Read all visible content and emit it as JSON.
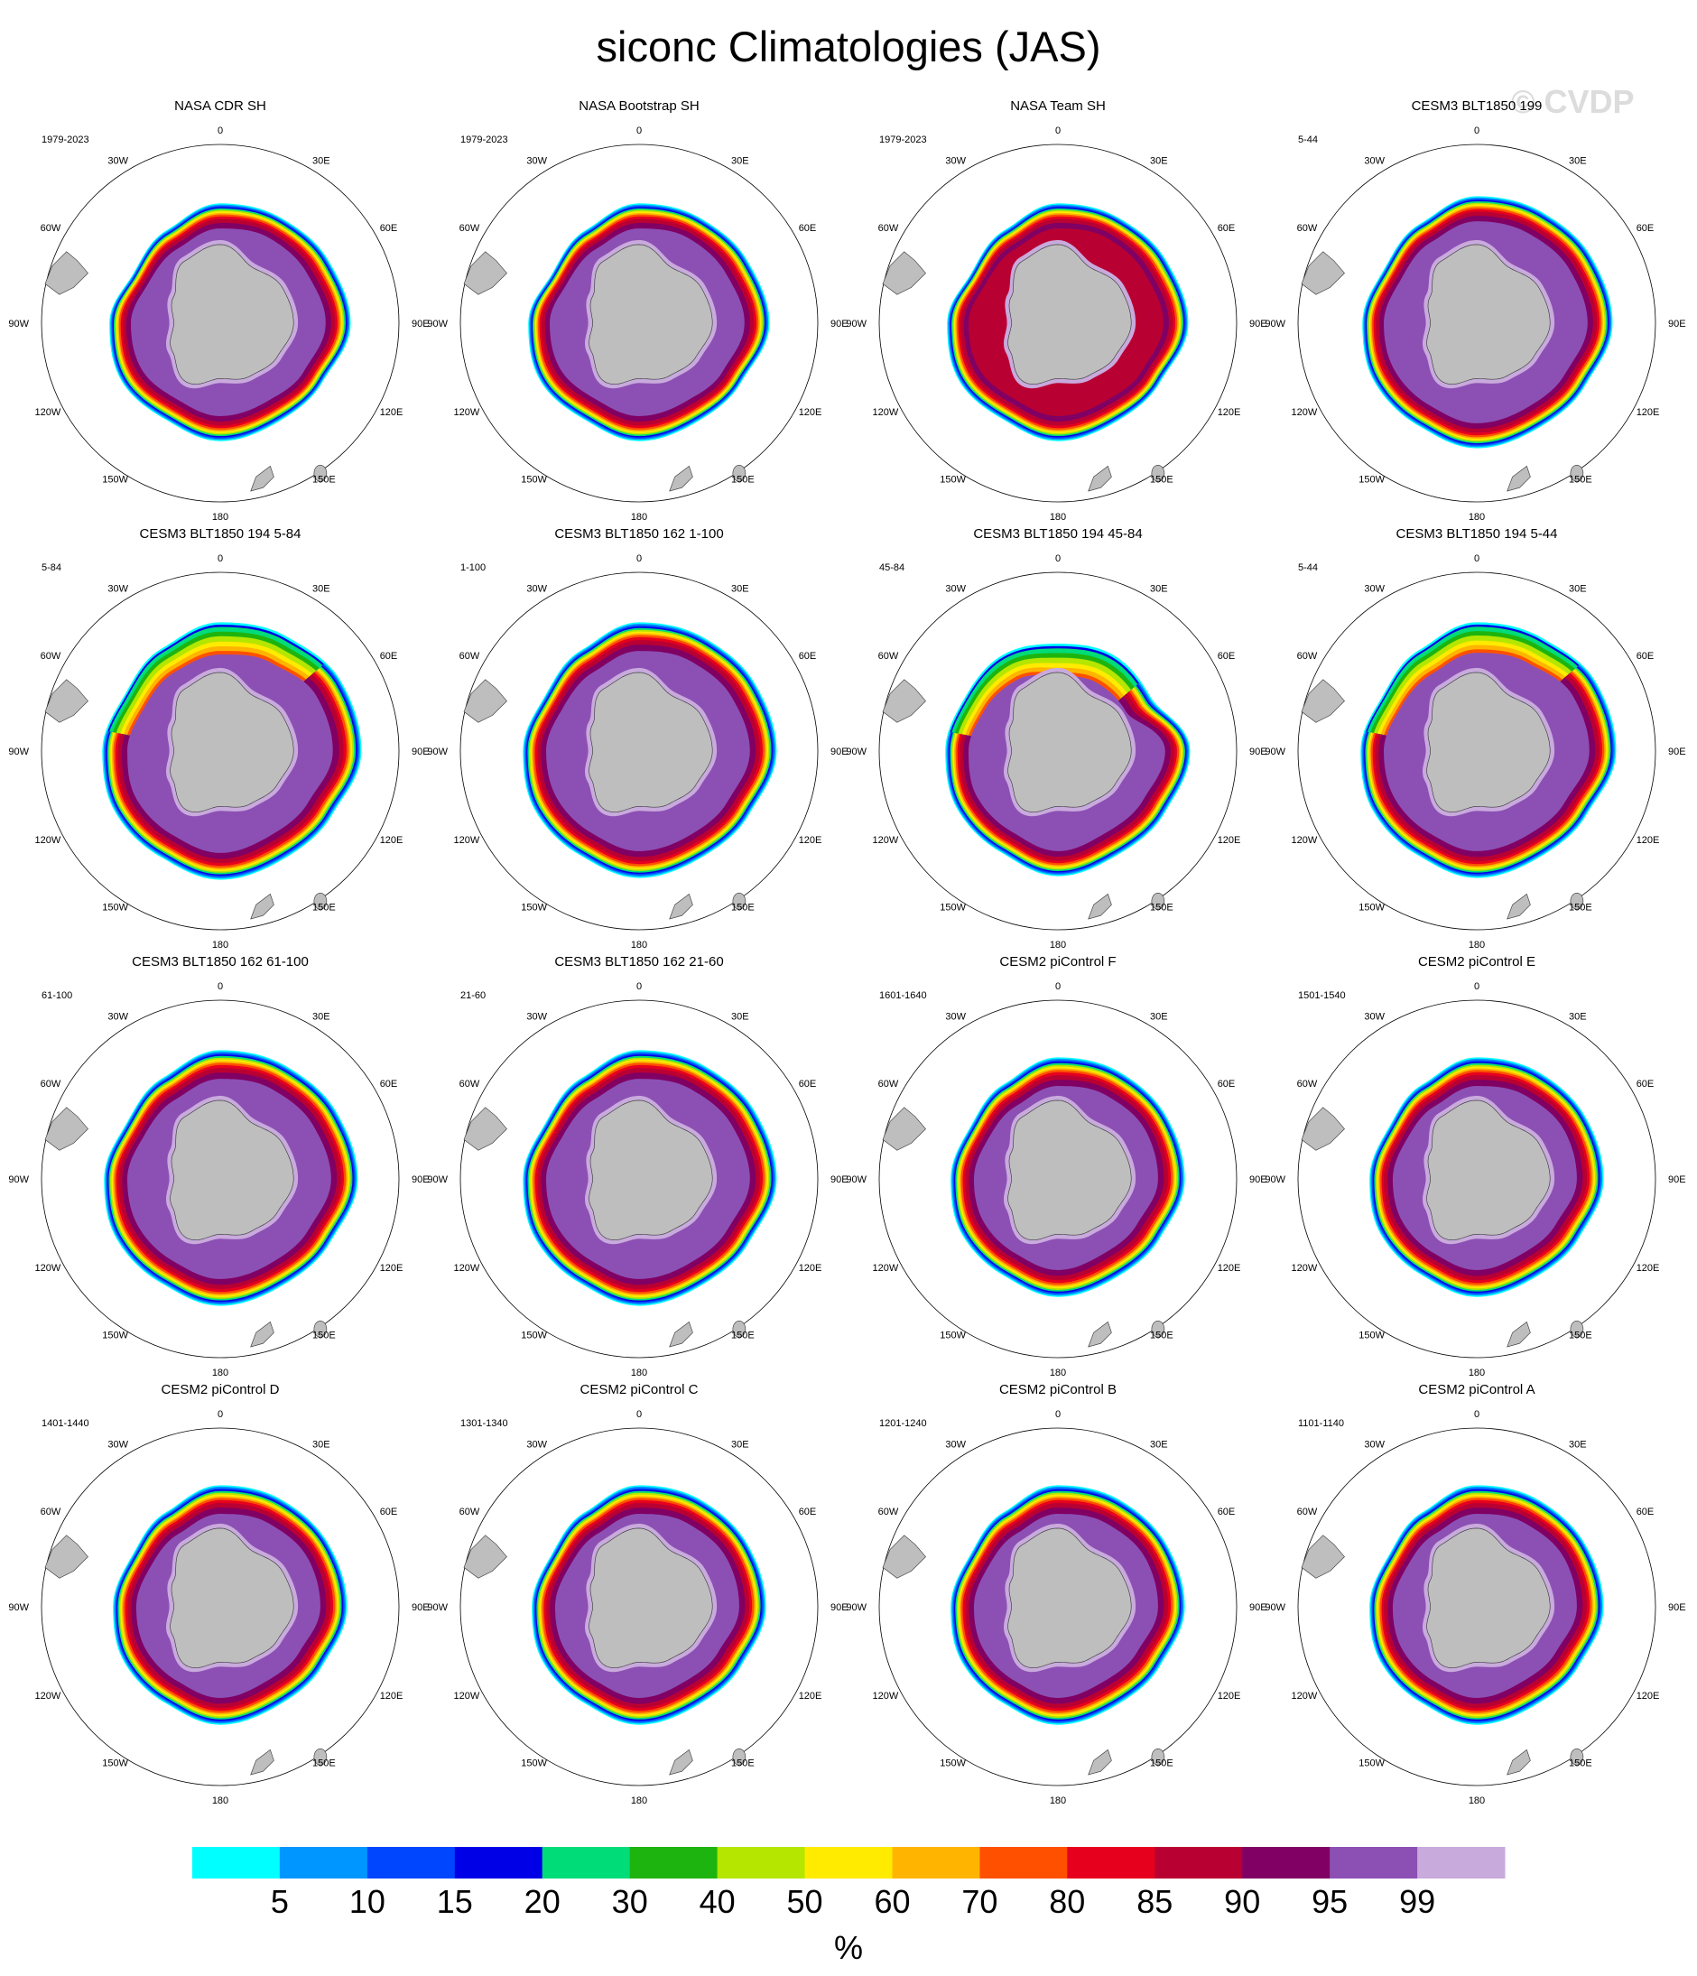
{
  "title": "siconc Climatologies (JAS)",
  "watermark": "© CVDP",
  "chart_data": {
    "type": "heatmap",
    "projection": "south-polar-stereographic",
    "title": "siconc Climatologies (JAS)",
    "lon_labels": [
      "0",
      "30E",
      "60E",
      "90E",
      "120E",
      "150E",
      "180",
      "150W",
      "120W",
      "90W",
      "60W",
      "30W"
    ],
    "colorbar": {
      "unit": "%",
      "levels": [
        "5",
        "10",
        "15",
        "20",
        "30",
        "40",
        "50",
        "60",
        "70",
        "80",
        "85",
        "90",
        "95",
        "99"
      ],
      "colors": [
        "#00ffff",
        "#0096ff",
        "#0046ff",
        "#0000e6",
        "#00dc78",
        "#1eb40f",
        "#b4e600",
        "#ffeb00",
        "#ffb400",
        "#ff5000",
        "#e6001e",
        "#b90032",
        "#800064",
        "#8c50b4",
        "#c8aadc"
      ]
    },
    "land_color": "#bebebe",
    "panels": [
      {
        "name": "NASA CDR SH",
        "years": "1979-2023",
        "ice": {
          "r": [
            0.67,
            0.68,
            0.7,
            0.73,
            0.66,
            0.64,
            0.66,
            0.62,
            0.64,
            0.62,
            0.56,
            0.6
          ],
          "w": [
            0.14,
            0.13,
            0.14,
            0.14,
            0.12,
            0.13,
            0.14,
            0.13,
            0.13,
            0.12,
            0.1,
            0.12
          ],
          "inner": "#8c50b4",
          "bad": []
        }
      },
      {
        "name": "NASA Bootstrap SH",
        "years": "1979-2023",
        "ice": {
          "r": [
            0.67,
            0.68,
            0.7,
            0.73,
            0.66,
            0.64,
            0.66,
            0.62,
            0.64,
            0.62,
            0.56,
            0.6
          ],
          "w": [
            0.14,
            0.13,
            0.14,
            0.14,
            0.12,
            0.13,
            0.14,
            0.13,
            0.13,
            0.12,
            0.1,
            0.12
          ],
          "inner": "#8c50b4",
          "bad": []
        }
      },
      {
        "name": "NASA Team SH",
        "years": "1979-2023",
        "ice": {
          "r": [
            0.67,
            0.68,
            0.7,
            0.73,
            0.66,
            0.64,
            0.66,
            0.62,
            0.64,
            0.62,
            0.56,
            0.6
          ],
          "w": [
            0.14,
            0.13,
            0.14,
            0.14,
            0.12,
            0.13,
            0.14,
            0.13,
            0.13,
            0.12,
            0.1,
            0.12
          ],
          "inner": "#b90032",
          "bad": []
        }
      },
      {
        "name": "CESM3 BLT1850 199",
        "years": "5-44",
        "ice": {
          "r": [
            0.71,
            0.72,
            0.74,
            0.76,
            0.7,
            0.68,
            0.7,
            0.66,
            0.66,
            0.64,
            0.6,
            0.64
          ],
          "w": [
            0.14,
            0.14,
            0.14,
            0.14,
            0.13,
            0.13,
            0.14,
            0.13,
            0.13,
            0.12,
            0.11,
            0.12
          ],
          "inner": "#8c50b4",
          "bad": []
        }
      },
      {
        "name": "CESM3 BLT1850 194 5-84",
        "years": "5-84",
        "ice": {
          "r": [
            0.72,
            0.74,
            0.78,
            0.79,
            0.72,
            0.7,
            0.72,
            0.68,
            0.68,
            0.66,
            0.62,
            0.66
          ],
          "w": [
            0.18,
            0.17,
            0.16,
            0.16,
            0.15,
            0.15,
            0.15,
            0.14,
            0.14,
            0.14,
            0.13,
            0.15
          ],
          "inner": "#8c50b4",
          "bad": [
            0,
            1,
            11
          ]
        }
      },
      {
        "name": "CESM3 BLT1850 162 1-100",
        "years": "1-100",
        "ice": {
          "r": [
            0.72,
            0.73,
            0.75,
            0.77,
            0.71,
            0.69,
            0.71,
            0.67,
            0.67,
            0.65,
            0.61,
            0.65
          ],
          "w": [
            0.16,
            0.15,
            0.15,
            0.15,
            0.14,
            0.14,
            0.15,
            0.14,
            0.14,
            0.13,
            0.12,
            0.14
          ],
          "inner": "#8c50b4",
          "bad": []
        }
      },
      {
        "name": "CESM3 BLT1850 194 45-84",
        "years": "45-84",
        "ice": {
          "r": [
            0.6,
            0.62,
            0.6,
            0.74,
            0.69,
            0.67,
            0.7,
            0.65,
            0.65,
            0.63,
            0.6,
            0.62
          ],
          "w": [
            0.18,
            0.18,
            0.16,
            0.14,
            0.14,
            0.14,
            0.14,
            0.13,
            0.13,
            0.13,
            0.13,
            0.16
          ],
          "inner": "#8c50b4",
          "bad": [
            0,
            1,
            11
          ]
        }
      },
      {
        "name": "CESM3 BLT1850 194 5-44",
        "years": "5-44",
        "ice": {
          "r": [
            0.72,
            0.73,
            0.77,
            0.78,
            0.71,
            0.69,
            0.71,
            0.67,
            0.67,
            0.65,
            0.61,
            0.65
          ],
          "w": [
            0.17,
            0.16,
            0.15,
            0.15,
            0.14,
            0.14,
            0.15,
            0.14,
            0.14,
            0.13,
            0.12,
            0.15
          ],
          "inner": "#8c50b4",
          "bad": [
            0,
            1
          ]
        }
      },
      {
        "name": "CESM3 BLT1850 162 61-100",
        "years": "61-100",
        "ice": {
          "r": [
            0.72,
            0.73,
            0.75,
            0.77,
            0.71,
            0.69,
            0.71,
            0.67,
            0.67,
            0.65,
            0.61,
            0.65
          ],
          "w": [
            0.16,
            0.15,
            0.15,
            0.15,
            0.14,
            0.14,
            0.15,
            0.14,
            0.14,
            0.13,
            0.12,
            0.14
          ],
          "inner": "#8c50b4",
          "bad": []
        }
      },
      {
        "name": "CESM3 BLT1850 162 21-60",
        "years": "21-60",
        "ice": {
          "r": [
            0.72,
            0.73,
            0.75,
            0.77,
            0.71,
            0.69,
            0.71,
            0.67,
            0.67,
            0.65,
            0.61,
            0.65
          ],
          "w": [
            0.16,
            0.15,
            0.15,
            0.15,
            0.14,
            0.14,
            0.15,
            0.14,
            0.14,
            0.13,
            0.12,
            0.14
          ],
          "inner": "#8c50b4",
          "bad": []
        }
      },
      {
        "name": "CESM2 piControl F",
        "years": "1601-1640",
        "ice": {
          "r": [
            0.68,
            0.69,
            0.7,
            0.71,
            0.66,
            0.64,
            0.66,
            0.62,
            0.62,
            0.6,
            0.57,
            0.61
          ],
          "w": [
            0.16,
            0.15,
            0.14,
            0.15,
            0.15,
            0.15,
            0.15,
            0.14,
            0.14,
            0.13,
            0.12,
            0.14
          ],
          "inner": "#8c50b4",
          "bad": []
        }
      },
      {
        "name": "CESM2 piControl E",
        "years": "1501-1540",
        "ice": {
          "r": [
            0.68,
            0.69,
            0.7,
            0.71,
            0.66,
            0.64,
            0.66,
            0.62,
            0.62,
            0.6,
            0.57,
            0.61
          ],
          "w": [
            0.16,
            0.15,
            0.14,
            0.15,
            0.15,
            0.15,
            0.15,
            0.14,
            0.14,
            0.13,
            0.12,
            0.14
          ],
          "inner": "#8c50b4",
          "bad": []
        }
      },
      {
        "name": "CESM2 piControl D",
        "years": "1401-1440",
        "ice": {
          "r": [
            0.68,
            0.69,
            0.7,
            0.71,
            0.66,
            0.64,
            0.66,
            0.62,
            0.62,
            0.6,
            0.57,
            0.61
          ],
          "w": [
            0.16,
            0.15,
            0.14,
            0.15,
            0.15,
            0.15,
            0.15,
            0.14,
            0.14,
            0.13,
            0.12,
            0.14
          ],
          "inner": "#8c50b4",
          "bad": []
        }
      },
      {
        "name": "CESM2 piControl C",
        "years": "1301-1340",
        "ice": {
          "r": [
            0.68,
            0.69,
            0.7,
            0.71,
            0.66,
            0.64,
            0.66,
            0.62,
            0.62,
            0.6,
            0.57,
            0.61
          ],
          "w": [
            0.16,
            0.15,
            0.14,
            0.15,
            0.15,
            0.15,
            0.15,
            0.14,
            0.14,
            0.13,
            0.12,
            0.14
          ],
          "inner": "#8c50b4",
          "bad": []
        }
      },
      {
        "name": "CESM2 piControl B",
        "years": "1201-1240",
        "ice": {
          "r": [
            0.68,
            0.69,
            0.7,
            0.71,
            0.66,
            0.64,
            0.66,
            0.62,
            0.62,
            0.6,
            0.57,
            0.61
          ],
          "w": [
            0.16,
            0.15,
            0.14,
            0.15,
            0.15,
            0.15,
            0.15,
            0.14,
            0.14,
            0.13,
            0.12,
            0.14
          ],
          "inner": "#8c50b4",
          "bad": []
        }
      },
      {
        "name": "CESM2 piControl A",
        "years": "1101-1140",
        "ice": {
          "r": [
            0.68,
            0.69,
            0.7,
            0.71,
            0.66,
            0.64,
            0.66,
            0.62,
            0.62,
            0.6,
            0.57,
            0.61
          ],
          "w": [
            0.16,
            0.15,
            0.14,
            0.15,
            0.15,
            0.15,
            0.15,
            0.14,
            0.14,
            0.13,
            0.12,
            0.14
          ],
          "inner": "#8c50b4",
          "bad": []
        }
      }
    ]
  }
}
